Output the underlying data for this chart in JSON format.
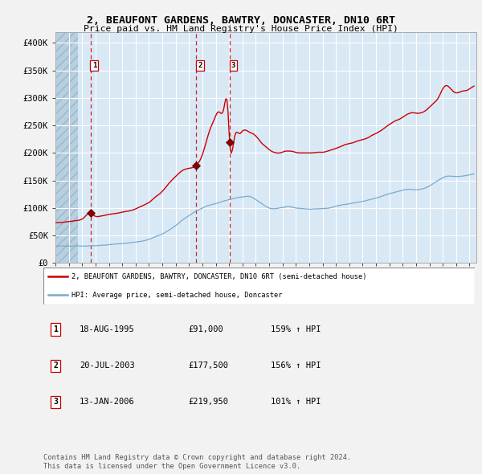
{
  "title1": "2, BEAUFONT GARDENS, BAWTRY, DONCASTER, DN10 6RT",
  "title2": "Price paid vs. HM Land Registry's House Price Index (HPI)",
  "legend_red": "2, BEAUFONT GARDENS, BAWTRY, DONCASTER, DN10 6RT (semi-detached house)",
  "legend_blue": "HPI: Average price, semi-detached house, Doncaster",
  "sale_points": [
    {
      "label": "1",
      "date_num": 1995.63,
      "price": 91000,
      "date_str": "18-AUG-1995",
      "pct": "159%",
      "arrow": "↑"
    },
    {
      "label": "2",
      "date_num": 2003.55,
      "price": 177500,
      "date_str": "20-JUL-2003",
      "pct": "156%",
      "arrow": "↑"
    },
    {
      "label": "3",
      "date_num": 2006.04,
      "price": 219950,
      "date_str": "13-JAN-2006",
      "pct": "101%",
      "arrow": "↑"
    }
  ],
  "footnote1": "Contains HM Land Registry data © Crown copyright and database right 2024.",
  "footnote2": "This data is licensed under the Open Government Licence v3.0.",
  "ylim": [
    0,
    420000
  ],
  "xlim_start": 1993.0,
  "xlim_end": 2024.5,
  "chart_bg": "#d8e8f5",
  "hatch_area_end": 1994.7,
  "hatch_color": "#b8cfe0",
  "grid_color": "#ffffff",
  "red_color": "#cc0000",
  "blue_color": "#7aabcc",
  "marker_color": "#880000",
  "fig_bg": "#f2f2f2",
  "yticks": [
    0,
    50000,
    100000,
    150000,
    200000,
    250000,
    300000,
    350000,
    400000
  ],
  "ytick_labels": [
    "£0",
    "£50K",
    "£100K",
    "£150K",
    "£200K",
    "£250K",
    "£300K",
    "£350K",
    "£400K"
  ],
  "hpi_anchors_t": [
    1993.0,
    1993.5,
    1994.0,
    1994.5,
    1995.0,
    1995.5,
    1996.0,
    1996.5,
    1997.0,
    1997.5,
    1998.0,
    1998.5,
    1999.0,
    1999.5,
    2000.0,
    2000.5,
    2001.0,
    2001.5,
    2002.0,
    2002.5,
    2003.0,
    2003.5,
    2004.0,
    2004.5,
    2005.0,
    2005.5,
    2006.0,
    2006.5,
    2007.0,
    2007.5,
    2008.0,
    2008.5,
    2009.0,
    2009.5,
    2010.0,
    2010.5,
    2011.0,
    2011.5,
    2012.0,
    2012.5,
    2013.0,
    2013.5,
    2014.0,
    2014.5,
    2015.0,
    2015.5,
    2016.0,
    2016.5,
    2017.0,
    2017.5,
    2018.0,
    2018.5,
    2019.0,
    2019.5,
    2020.0,
    2020.5,
    2021.0,
    2021.5,
    2022.0,
    2022.5,
    2023.0,
    2023.5,
    2024.0,
    2024.4
  ],
  "hpi_anchors_v": [
    30500,
    30800,
    31000,
    31500,
    31000,
    31200,
    31800,
    32500,
    33500,
    34500,
    35500,
    36500,
    38000,
    40000,
    43000,
    48000,
    53000,
    60000,
    68000,
    78000,
    86000,
    94000,
    100000,
    105000,
    108000,
    112000,
    115000,
    118000,
    120000,
    121000,
    115000,
    107000,
    100000,
    99000,
    101000,
    102000,
    100000,
    99000,
    98000,
    98500,
    99000,
    100000,
    103000,
    106000,
    108000,
    110000,
    112000,
    115000,
    118000,
    122000,
    126000,
    129000,
    132000,
    134000,
    133000,
    135000,
    140000,
    148000,
    155000,
    158000,
    157000,
    158000,
    160000,
    162000
  ],
  "red_anchors_t": [
    1993.0,
    1993.5,
    1994.0,
    1994.5,
    1995.0,
    1995.63,
    1996.0,
    1996.5,
    1997.0,
    1997.5,
    1998.0,
    1998.5,
    1999.0,
    1999.5,
    2000.0,
    2000.5,
    2001.0,
    2001.5,
    2002.0,
    2002.5,
    2003.0,
    2003.55,
    2004.0,
    2004.5,
    2004.9,
    2005.2,
    2005.6,
    2005.9,
    2006.04,
    2006.4,
    2006.8,
    2007.0,
    2007.5,
    2007.9,
    2008.3,
    2008.8,
    2009.2,
    2009.7,
    2010.2,
    2010.7,
    2011.2,
    2011.7,
    2012.2,
    2012.7,
    2013.2,
    2013.7,
    2014.2,
    2014.7,
    2015.2,
    2015.7,
    2016.2,
    2016.7,
    2017.2,
    2017.7,
    2018.2,
    2018.7,
    2019.2,
    2019.7,
    2020.2,
    2020.7,
    2021.2,
    2021.7,
    2022.0,
    2022.3,
    2022.7,
    2023.0,
    2023.4,
    2023.8,
    2024.1,
    2024.4
  ],
  "red_anchors_v": [
    73000,
    74000,
    75500,
    77000,
    80000,
    91000,
    85000,
    86000,
    88000,
    90000,
    92500,
    95000,
    98000,
    104000,
    110000,
    120000,
    130000,
    145000,
    157000,
    168000,
    172000,
    177500,
    197000,
    238000,
    262000,
    275000,
    280000,
    282000,
    219950,
    228000,
    235000,
    240000,
    238000,
    233000,
    222000,
    210000,
    203000,
    200000,
    203000,
    203000,
    200000,
    200000,
    200000,
    201000,
    202000,
    206000,
    210000,
    215000,
    218000,
    222000,
    226000,
    232000,
    238000,
    246000,
    255000,
    261000,
    268000,
    273000,
    272000,
    277000,
    288000,
    302000,
    316000,
    322000,
    314000,
    309000,
    312000,
    314000,
    318000,
    323000
  ]
}
